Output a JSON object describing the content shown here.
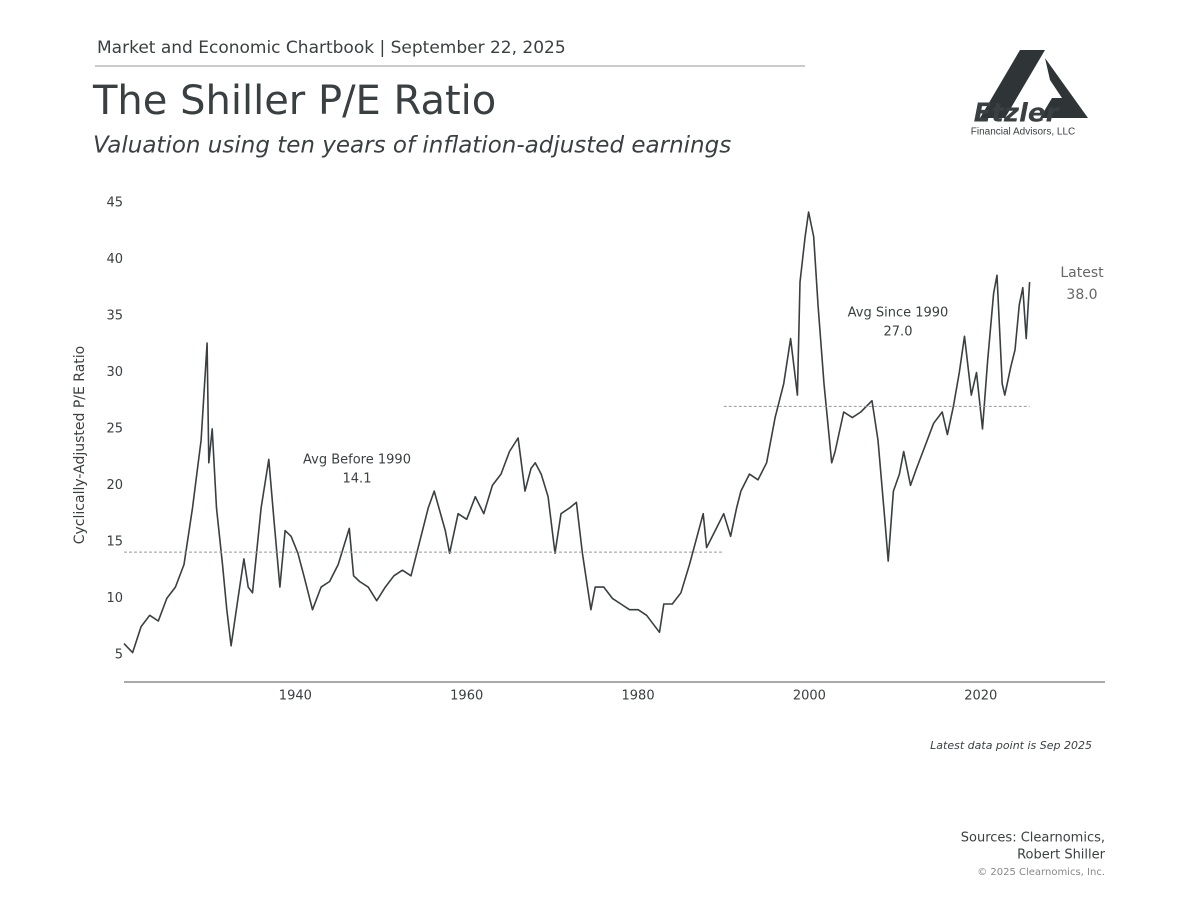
{
  "header": {
    "kicker": "Market and Economic Chartbook | September 22, 2025",
    "title": "The Shiller P/E Ratio",
    "subtitle": "Valuation using ten years of inflation-adjusted earnings"
  },
  "logo": {
    "name": "Etzler",
    "tagline": "Financial Advisors, LLC"
  },
  "chart_data": {
    "type": "line",
    "y_label": "Cyclically-Adjusted P/E Ratio",
    "color": "#3a3f42",
    "grid": false,
    "x": [
      1920,
      1921,
      1922,
      1923,
      1924,
      1925,
      1926,
      1927,
      1928,
      1929,
      1929.7,
      1929.9,
      1930.3,
      1930.8,
      1931.5,
      1932,
      1932.5,
      1933.3,
      1934,
      1934.5,
      1935,
      1936,
      1936.9,
      1937.5,
      1938.2,
      1938.8,
      1939.5,
      1940.3,
      1941,
      1942,
      1943,
      1944,
      1945,
      1946.3,
      1946.8,
      1947.5,
      1948.5,
      1949.5,
      1950.5,
      1951.5,
      1952.5,
      1953.5,
      1954.5,
      1955.5,
      1956.2,
      1957.5,
      1958,
      1959,
      1960,
      1961,
      1962,
      1963,
      1964,
      1965,
      1966,
      1966.8,
      1967.5,
      1968,
      1968.7,
      1969.5,
      1970.3,
      1971,
      1972,
      1972.8,
      1973.5,
      1974.5,
      1975,
      1976,
      1977,
      1978,
      1979,
      1980,
      1981,
      1982.5,
      1983,
      1984,
      1985,
      1986,
      1987.6,
      1988,
      1989,
      1990,
      1990.8,
      1991.5,
      1992,
      1993,
      1994,
      1995,
      1996,
      1997,
      1997.8,
      1998.6,
      1998.9,
      1999.5,
      1999.9,
      2000.5,
      2001,
      2001.7,
      2002.6,
      2003,
      2004,
      2005,
      2006,
      2007.3,
      2008,
      2008.8,
      2009.2,
      2009.8,
      2010.5,
      2011,
      2011.8,
      2012.5,
      2013.5,
      2014.5,
      2015.5,
      2016.1,
      2016.8,
      2017.5,
      2018.1,
      2018.9,
      2019.5,
      2020.2,
      2020.8,
      2021.5,
      2021.9,
      2022.5,
      2022.8,
      2023.5,
      2024,
      2024.5,
      2024.9,
      2025.3,
      2025.7
    ],
    "values": [
      6,
      5.2,
      7.5,
      8.5,
      8,
      10,
      11,
      13,
      18,
      24,
      32.6,
      22,
      25,
      18,
      13,
      9,
      5.8,
      10,
      13.5,
      11,
      10.5,
      18,
      22.3,
      17,
      11,
      16,
      15.5,
      14,
      12,
      9,
      11,
      11.5,
      13,
      16.2,
      12,
      11.5,
      11,
      9.8,
      11,
      12,
      12.5,
      12,
      15,
      18,
      19.5,
      16,
      14,
      17.5,
      17,
      19,
      17.5,
      20,
      21,
      23,
      24.2,
      19.5,
      21.5,
      22,
      21,
      19,
      14,
      17.5,
      18,
      18.5,
      14,
      9,
      11,
      11,
      10,
      9.5,
      9,
      9,
      8.5,
      7,
      9.5,
      9.5,
      10.5,
      13,
      17.5,
      14.5,
      16,
      17.5,
      15.5,
      18,
      19.5,
      21,
      20.5,
      22,
      26,
      29,
      33,
      28,
      38,
      42,
      44.2,
      42,
      36,
      29,
      22,
      23,
      26.5,
      26,
      26.5,
      27.5,
      24,
      17,
      13.3,
      19.5,
      21,
      23,
      20,
      21.5,
      23.5,
      25.5,
      26.5,
      24.5,
      27,
      30,
      33.2,
      28,
      30,
      25,
      31,
      37,
      38.6,
      29,
      28,
      30.5,
      32,
      36,
      37.5,
      33,
      38
    ],
    "xlim": [
      1920,
      2034.5
    ],
    "xticks": [
      1940,
      1960,
      1980,
      2000,
      2020
    ],
    "ylim": [
      2.6,
      45
    ],
    "yticks": [
      5,
      10,
      15,
      20,
      25,
      30,
      35,
      40,
      45
    ],
    "reference_lines": [
      {
        "label": "Avg Before 1990",
        "value": 14.1,
        "x_range": [
          1920,
          1990
        ]
      },
      {
        "label": "Avg Since 1990",
        "value": 27,
        "value_label": "27.0",
        "x_range": [
          1990,
          2025.7
        ]
      }
    ],
    "latest": {
      "label": "Latest",
      "value": 38,
      "value_label": "38.0"
    },
    "note": "Latest data point is Sep 2025"
  },
  "footer": {
    "sources": [
      "Sources: Clearnomics,",
      "Robert Shiller"
    ],
    "copyright": "© 2025 Clearnomics, Inc."
  }
}
